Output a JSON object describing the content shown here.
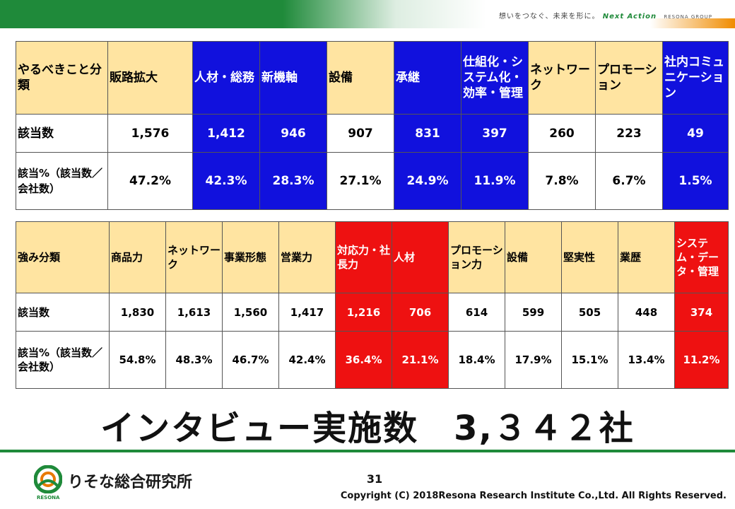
{
  "header": {
    "slogan": "想いをつなぐ、未来を形に。",
    "brand": "Next Action",
    "group": "RESONA GROUP"
  },
  "table1": {
    "header": [
      {
        "text": "やるべきこと分類",
        "color": "cream"
      },
      {
        "text": "販路拡大",
        "color": "cream"
      },
      {
        "text": "人材・総務",
        "color": "blue"
      },
      {
        "text": "新機軸",
        "color": "blue"
      },
      {
        "text": "設備",
        "color": "cream"
      },
      {
        "text": "承継",
        "color": "blue"
      },
      {
        "text": "仕組化・システム化・効率・管理",
        "color": "blue"
      },
      {
        "text": "ネットワーク",
        "color": "cream"
      },
      {
        "text": "プロモーション",
        "color": "cream"
      },
      {
        "text": "社内コミュニケーション",
        "color": "blue"
      }
    ],
    "count_label": "該当数",
    "counts": [
      "1,576",
      "1,412",
      "946",
      "907",
      "831",
      "397",
      "260",
      "223",
      "49"
    ],
    "pct_label": "該当%（該当数／会社数）",
    "percents": [
      "47.2%",
      "42.3%",
      "28.3%",
      "27.1%",
      "24.9%",
      "11.9%",
      "7.8%",
      "6.7%",
      "1.5%"
    ]
  },
  "table2": {
    "header": [
      {
        "text": "強み分類",
        "color": "cream"
      },
      {
        "text": "商品力",
        "color": "cream"
      },
      {
        "text": "ネットワーク",
        "color": "cream"
      },
      {
        "text": "事業形態",
        "color": "cream"
      },
      {
        "text": "営業力",
        "color": "cream"
      },
      {
        "text": "対応力・社長力",
        "color": "red"
      },
      {
        "text": "人材",
        "color": "red"
      },
      {
        "text": "プロモーション力",
        "color": "cream"
      },
      {
        "text": "設備",
        "color": "cream"
      },
      {
        "text": "堅実性",
        "color": "cream"
      },
      {
        "text": "業歴",
        "color": "cream"
      },
      {
        "text": "システム・データ・管理",
        "color": "red"
      }
    ],
    "count_label": "該当数",
    "counts": [
      "1,830",
      "1,613",
      "1,560",
      "1,417",
      "1,216",
      "706",
      "614",
      "599",
      "505",
      "448",
      "374"
    ],
    "pct_label": "該当%（該当数／会社数）",
    "percents": [
      "54.8%",
      "48.3%",
      "46.7%",
      "42.4%",
      "36.4%",
      "21.1%",
      "18.4%",
      "17.9%",
      "15.1%",
      "13.4%",
      "11.2%"
    ]
  },
  "headline": "インタビュー実施数　3,３４２社",
  "footer": {
    "logo_name": "りそな総合研究所",
    "logo_sub": "RESONA",
    "page_number": "31",
    "copyright": "Copyright (C) 2018Resona Research Institute Co.,Ltd. All Rights Reserved."
  }
}
